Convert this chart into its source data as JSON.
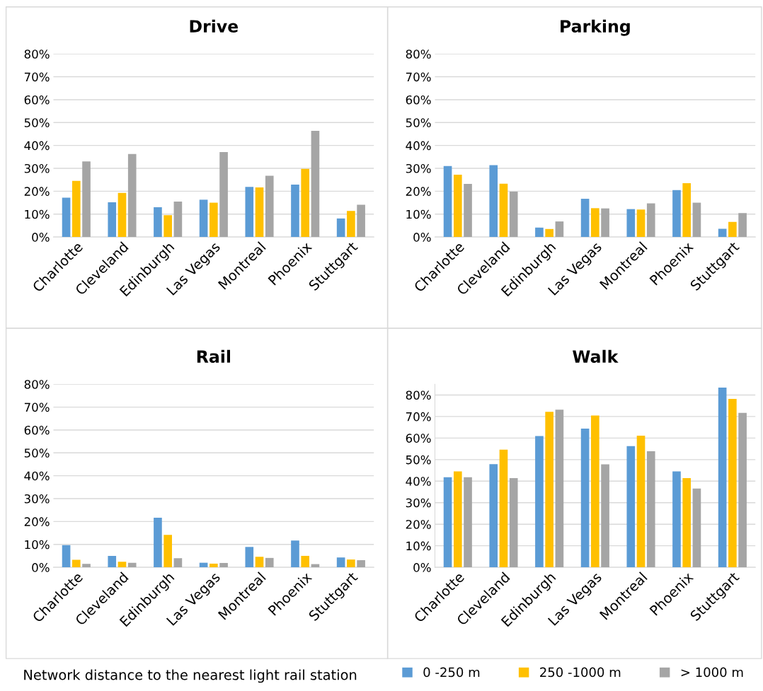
{
  "chart_data": [
    {
      "type": "bar",
      "title": "Drive",
      "categories": [
        "Charlotte",
        "Cleveland",
        "Edinburgh",
        "Las Vegas",
        "Montreal",
        "Phoenix",
        "Stuttgart"
      ],
      "ylim": [
        0,
        80
      ],
      "yticks": [
        {
          "value": 0,
          "label": "0%"
        },
        {
          "value": 10,
          "label": "10%"
        },
        {
          "value": 20,
          "label": "20%"
        },
        {
          "value": 30,
          "label": "30%"
        },
        {
          "value": 40,
          "label": "40%"
        },
        {
          "value": 50,
          "label": "50%"
        },
        {
          "value": 60,
          "label": "60%"
        },
        {
          "value": 70,
          "label": "70%"
        },
        {
          "value": 80,
          "label": "80%"
        }
      ],
      "grid": "y",
      "legend": "bottom",
      "legend_title": "Network distance to the nearest light rail station",
      "series": [
        {
          "name": "0 -250 m",
          "color": "#5b9bd5",
          "values": [
            17.2,
            15.2,
            13,
            16.3,
            21.9,
            22.9,
            8.1
          ]
        },
        {
          "name": "250 -1000 m",
          "color": "#ffc000",
          "values": [
            24.5,
            19.3,
            9.5,
            15,
            21.7,
            29.8,
            11.4
          ]
        },
        {
          "name": "> 1000 m",
          "color": "#a5a5a5",
          "values": [
            33,
            36.3,
            15.5,
            37.1,
            26.8,
            46.4,
            14.1
          ]
        }
      ]
    },
    {
      "type": "bar",
      "title": "Parking",
      "categories": [
        "Charlotte",
        "Cleveland",
        "Edinburgh",
        "Las Vegas",
        "Montreal",
        "Phoenix",
        "Stuttgart"
      ],
      "ylim": [
        0,
        80
      ],
      "yticks": [
        {
          "value": 0,
          "label": "0%"
        },
        {
          "value": 10,
          "label": "10%"
        },
        {
          "value": 20,
          "label": "20%"
        },
        {
          "value": 30,
          "label": "30%"
        },
        {
          "value": 40,
          "label": "40%"
        },
        {
          "value": 50,
          "label": "50%"
        },
        {
          "value": 60,
          "label": "60%"
        },
        {
          "value": 70,
          "label": "70%"
        },
        {
          "value": 80,
          "label": "80%"
        }
      ],
      "grid": "y",
      "series": [
        {
          "color": "#5b9bd5",
          "values": [
            31,
            31.4,
            4.1,
            16.7,
            12.2,
            20.5,
            3.6
          ]
        },
        {
          "color": "#ffc000",
          "values": [
            27.2,
            23.3,
            3.5,
            12.6,
            12,
            23.5,
            6.6
          ]
        },
        {
          "color": "#a5a5a5",
          "values": [
            23.2,
            19.8,
            6.8,
            12.5,
            14.7,
            15,
            10.5
          ]
        }
      ]
    },
    {
      "type": "bar",
      "title": "Rail",
      "categories": [
        "Charlotte",
        "Cleveland",
        "Edinburgh",
        "Las Vegas",
        "Montreal",
        "Phoenix",
        "Stuttgart"
      ],
      "ylim": [
        0,
        80
      ],
      "yticks": [
        {
          "value": 0,
          "label": "0%"
        },
        {
          "value": 10,
          "label": "10%"
        },
        {
          "value": 20,
          "label": "20%"
        },
        {
          "value": 30,
          "label": "30%"
        },
        {
          "value": 40,
          "label": "40%"
        },
        {
          "value": 50,
          "label": "50%"
        },
        {
          "value": 60,
          "label": "60%"
        },
        {
          "value": 70,
          "label": "70%"
        },
        {
          "value": 80,
          "label": "80%"
        }
      ],
      "grid": "y",
      "series": [
        {
          "color": "#5b9bd5",
          "values": [
            9.7,
            5,
            21.7,
            2,
            8.9,
            11.7,
            4.3
          ]
        },
        {
          "color": "#ffc000",
          "values": [
            3.3,
            2.4,
            14.2,
            1.6,
            4.6,
            5,
            3.4
          ]
        },
        {
          "color": "#a5a5a5",
          "values": [
            1.5,
            2,
            4,
            1.9,
            4.1,
            1.4,
            3.1
          ]
        }
      ]
    },
    {
      "type": "bar",
      "title": "Walk",
      "categories": [
        "Charlotte",
        "Cleveland",
        "Edinburgh",
        "Las Vegas",
        "Montreal",
        "Phoenix",
        "Stuttgart"
      ],
      "ylim": [
        0,
        85
      ],
      "yticks": [
        {
          "value": 0,
          "label": "0%"
        },
        {
          "value": 10,
          "label": "10%"
        },
        {
          "value": 20,
          "label": "20%"
        },
        {
          "value": 30,
          "label": "30%"
        },
        {
          "value": 40,
          "label": "40%"
        },
        {
          "value": 50,
          "label": "50%"
        },
        {
          "value": 60,
          "label": "60%"
        },
        {
          "value": 70,
          "label": "70%"
        },
        {
          "value": 80,
          "label": "80%"
        }
      ],
      "grid": "y",
      "series": [
        {
          "color": "#5b9bd5",
          "values": [
            41.8,
            47.9,
            60.9,
            64.4,
            56.3,
            44.5,
            83.4
          ]
        },
        {
          "color": "#ffc000",
          "values": [
            44.5,
            54.6,
            72.2,
            70.5,
            61.1,
            41.4,
            78.2
          ]
        },
        {
          "color": "#a5a5a5",
          "values": [
            41.8,
            41.4,
            73.2,
            47.8,
            53.9,
            36.6,
            71.7
          ]
        }
      ]
    }
  ]
}
